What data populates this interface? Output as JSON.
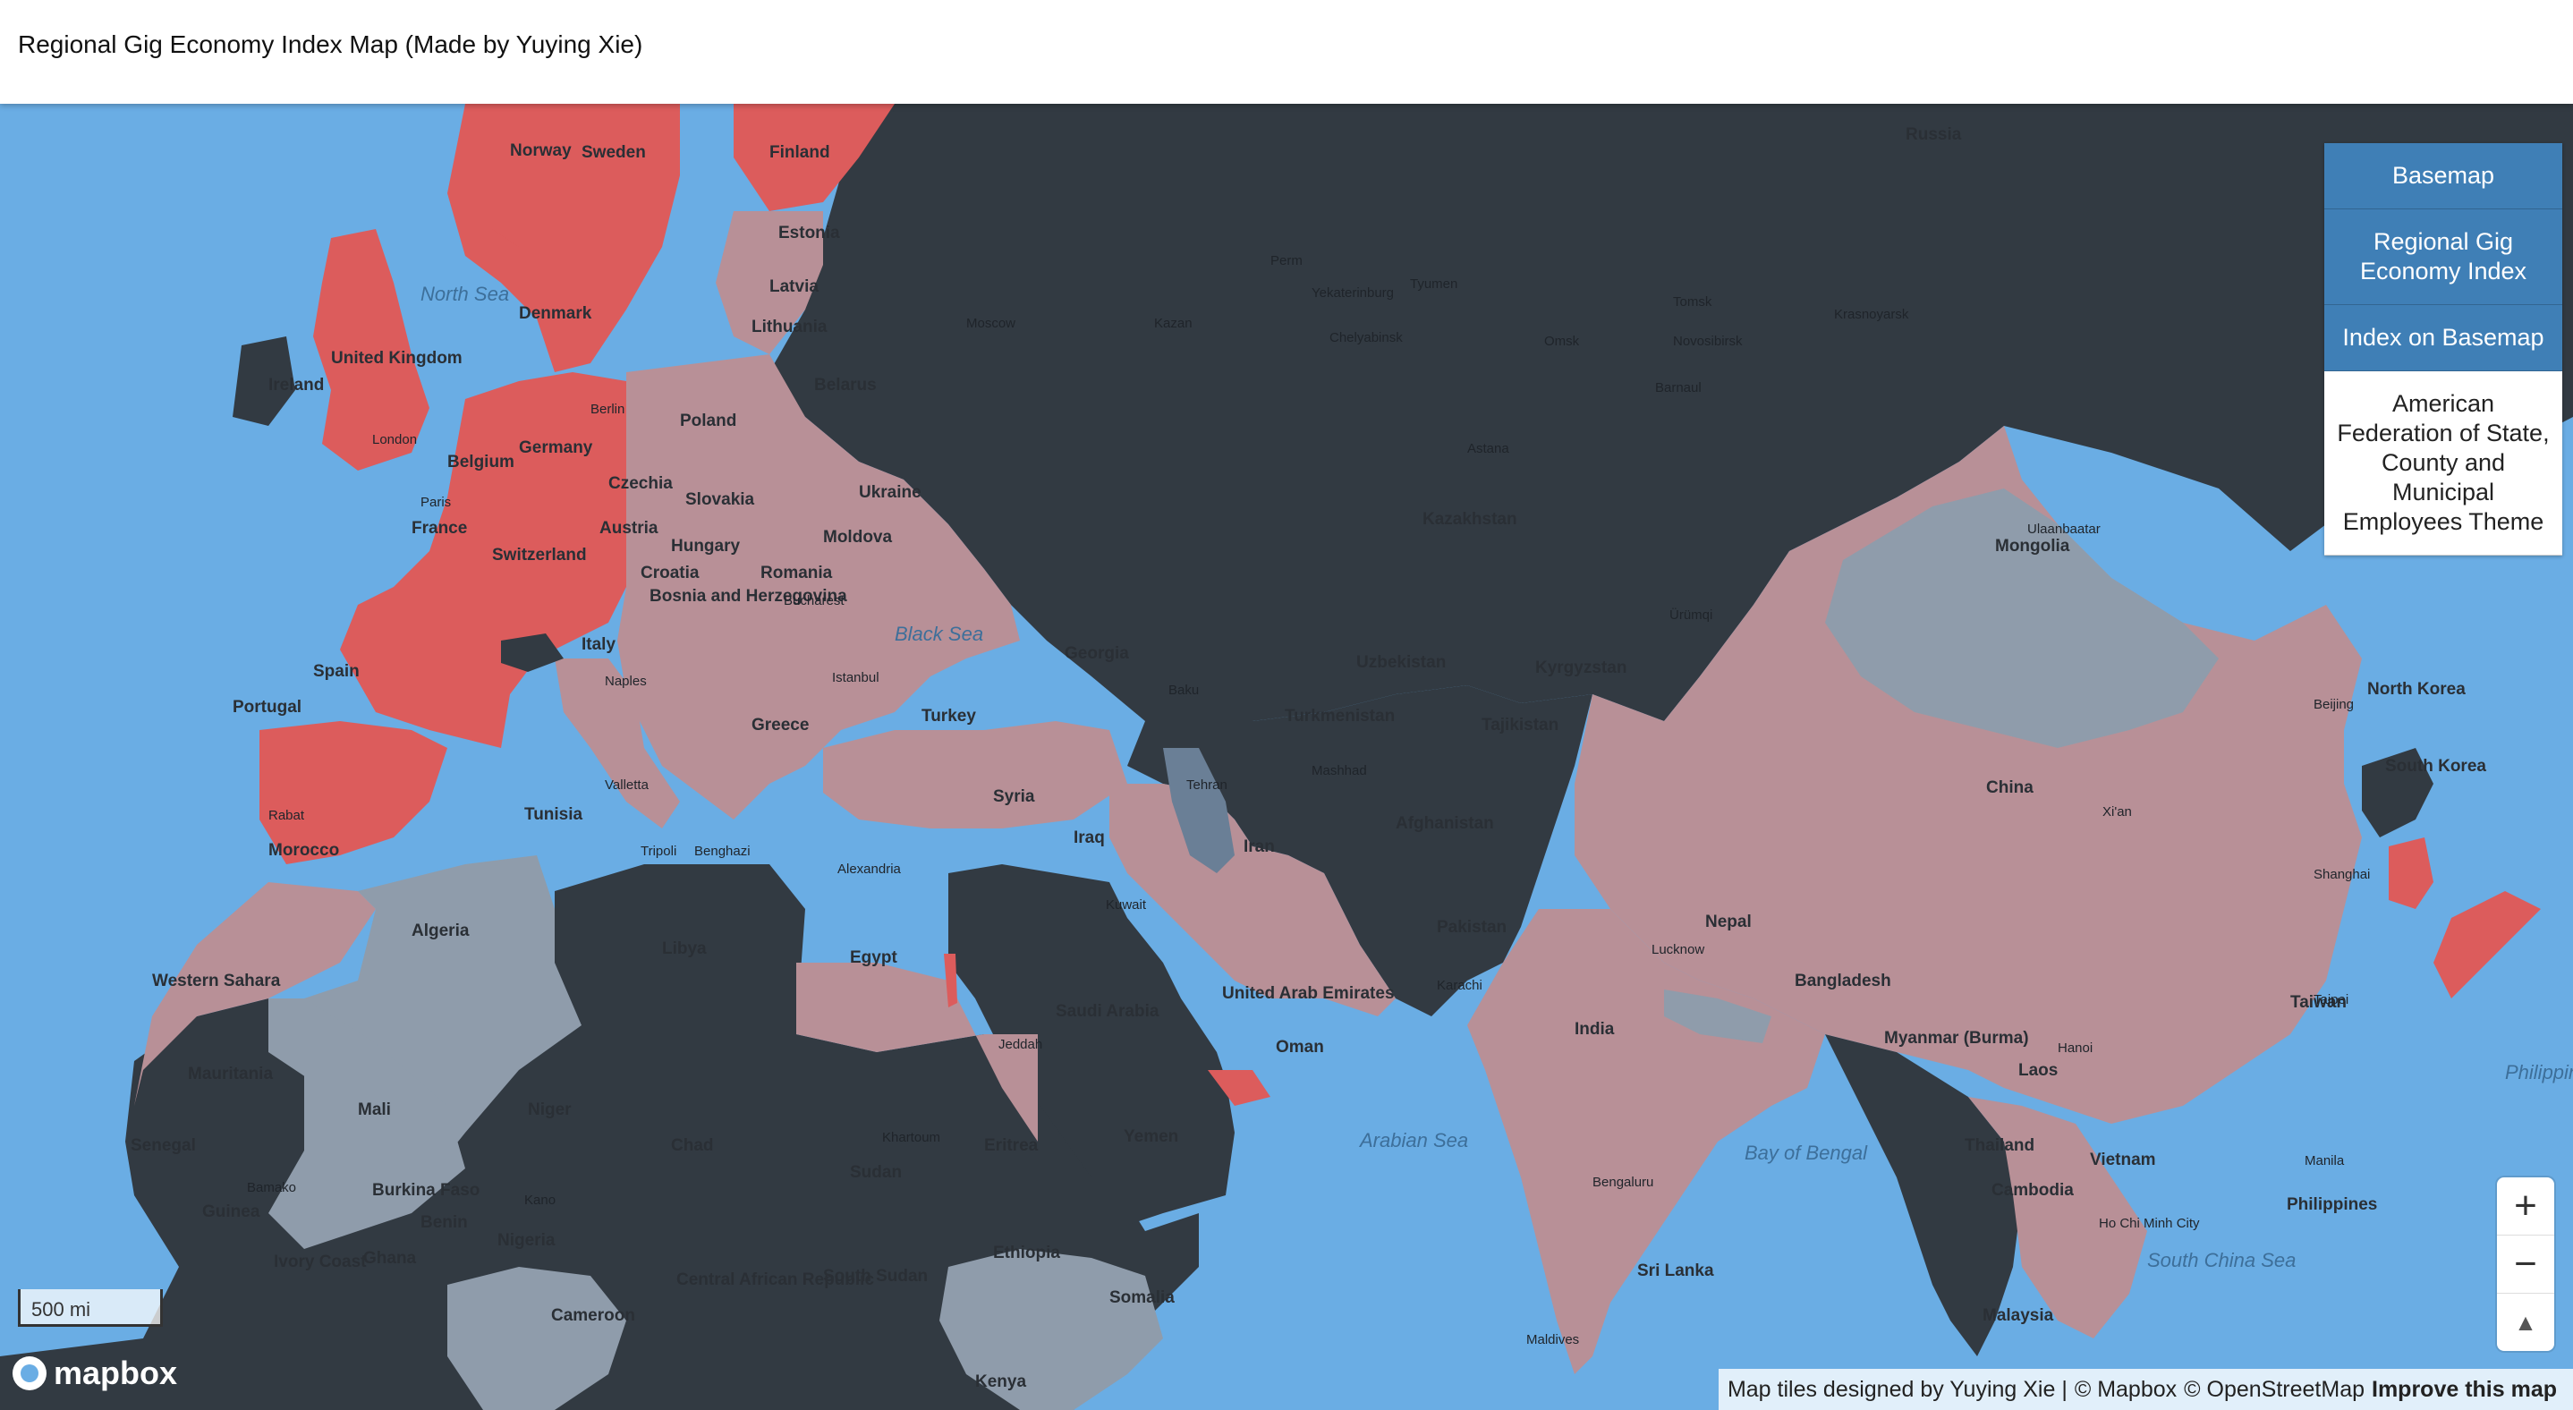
{
  "header": {
    "title": "Regional Gig Economy Index Map (Made by Yuying Xie)"
  },
  "menu": {
    "items": [
      {
        "label": "Basemap",
        "active": true
      },
      {
        "label": "Regional Gig Economy Index",
        "active": true
      },
      {
        "label": "Index on Basemap",
        "active": true
      },
      {
        "label": "American Federation of State, County and Municipal Employees Theme",
        "active": false
      }
    ]
  },
  "zoom": {
    "in_label": "+",
    "out_label": "−",
    "compass_label": "▲"
  },
  "scale": {
    "label": "500 mi"
  },
  "logo": {
    "text": "mapbox"
  },
  "attribution": {
    "designer": "Map tiles designed by Yuying Xie |",
    "mapbox": "© Mapbox",
    "osm": "© OpenStreetMap",
    "improve": "Improve this map"
  },
  "colors": {
    "water": "#6aade4",
    "dark": "#323a42",
    "pink": "#b89097",
    "red": "#dc5c5c",
    "gray": "#8f9cab",
    "accent": "#3f7fb6"
  },
  "places": {
    "countries": [
      "Norway",
      "Sweden",
      "Finland",
      "United Kingdom",
      "Ireland",
      "Denmark",
      "Germany",
      "Poland",
      "France",
      "Spain",
      "Portugal",
      "Italy",
      "Austria",
      "Czechia",
      "Hungary",
      "Romania",
      "Ukraine",
      "Belarus",
      "Lithuania",
      "Latvia",
      "Estonia",
      "Russia",
      "Kazakhstan",
      "Mongolia",
      "China",
      "Turkey",
      "Greece",
      "Georgia",
      "Iran",
      "Iraq",
      "Syria",
      "Egypt",
      "Libya",
      "Algeria",
      "Morocco",
      "Mauritania",
      "Mali",
      "Niger",
      "Chad",
      "Sudan",
      "South Sudan",
      "Ethiopia",
      "Somalia",
      "Kenya",
      "Nigeria",
      "Saudi Arabia",
      "Yemen",
      "Oman",
      "Afghanistan",
      "Pakistan",
      "India",
      "Nepal",
      "Bangladesh",
      "Myanmar (Burma)",
      "Thailand",
      "Laos",
      "Vietnam",
      "Cambodia",
      "Malaysia",
      "South Korea",
      "North Korea",
      "Uzbekistan",
      "Turkmenistan",
      "Tajikistan",
      "Kyrgyzstan",
      "Senegal",
      "Guinea",
      "Burkina Faso",
      "Ghana",
      "Ivory Coast",
      "Benin",
      "Cameroon",
      "Sri Lanka",
      "Tunisia",
      "Western Sahara",
      "Central African Republic",
      "Eritrea",
      "United Arab Emirates",
      "Bosnia and Herzegovina",
      "Croatia",
      "Slovakia",
      "Moldova",
      "Philippines",
      "Taiwan",
      "Switzerland",
      "Belgium"
    ],
    "seas": [
      "North Sea",
      "Black Sea",
      "Arabian Sea",
      "Bay of Bengal",
      "South China Sea",
      "Philippine Sea"
    ],
    "cities": [
      "Moscow",
      "Kazan",
      "Perm",
      "Yekaterinburg",
      "Chelyabinsk",
      "Tyumen",
      "Omsk",
      "Novosibirsk",
      "Tomsk",
      "Krasnoyarsk",
      "Barnaul",
      "Astana",
      "Ulaanbaatar",
      "Beijing",
      "Shanghai",
      "Xi'an",
      "Ürümqi",
      "Tehran",
      "Baku",
      "Mashhad",
      "Karachi",
      "Lucknow",
      "Bengaluru",
      "Istanbul",
      "Bucharest",
      "Naples",
      "Paris",
      "London",
      "Berlin",
      "Rabat",
      "Valletta",
      "Tripoli",
      "Benghazi",
      "Khartoum",
      "Alexandria",
      "Jeddah",
      "Kuwait",
      "Kano",
      "Bamako",
      "Hanoi",
      "Taipei",
      "Maldives",
      "Manila",
      "Ho Chi Minh City"
    ]
  }
}
